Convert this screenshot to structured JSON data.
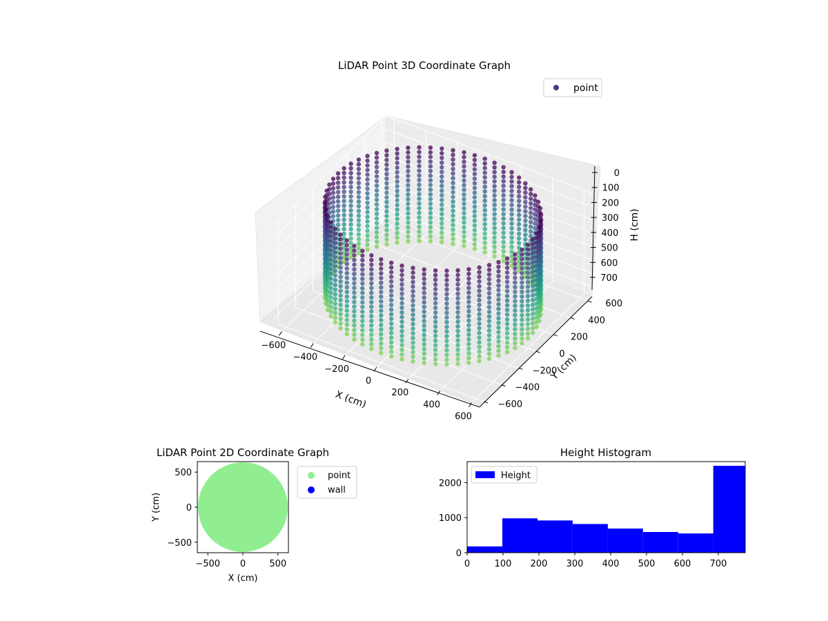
{
  "chart_data": [
    {
      "type": "scatter",
      "title": "LiDAR Point 3D Coordinate Graph",
      "xlabel": "X (cm)",
      "ylabel": "Y (cm)",
      "zlabel": "H (cm)",
      "xlim": [
        -650,
        650
      ],
      "ylim": [
        -650,
        650
      ],
      "zlim": [
        775,
        0
      ],
      "x_ticks": [
        -600,
        -400,
        -200,
        0,
        200,
        400,
        600
      ],
      "y_ticks": [
        -600,
        -400,
        -200,
        0,
        200,
        400,
        600
      ],
      "z_ticks": [
        0,
        100,
        200,
        300,
        400,
        500,
        600,
        700
      ],
      "grid": true,
      "legend": {
        "location": "upper right",
        "entries": [
          {
            "label": "point",
            "color": "#453781"
          }
        ]
      },
      "colormap": "viridis",
      "series": [
        {
          "name": "point",
          "description_rings": {
            "radius": 600,
            "angle_coverage_deg": [
              0,
              360
            ],
            "height_range": [
              0,
              700
            ]
          }
        }
      ]
    },
    {
      "type": "scatter",
      "title": "LiDAR Point 2D Coordinate Graph",
      "xlabel": "X (cm)",
      "ylabel": "Y (cm)",
      "xlim": [
        -650,
        650
      ],
      "ylim": [
        -650,
        650
      ],
      "x_ticks": [
        -500,
        0,
        500
      ],
      "y_ticks": [
        -500,
        0,
        500
      ],
      "legend": {
        "location": "outside right",
        "entries": [
          {
            "label": "point",
            "color": "#90ee90"
          },
          {
            "label": "wall",
            "color": "#0000ff"
          }
        ]
      },
      "series": [
        {
          "name": "point",
          "color": "#90ee90",
          "shape": "disk",
          "radius": 640
        },
        {
          "name": "wall",
          "color": "#0000ff",
          "values": []
        }
      ]
    },
    {
      "type": "bar",
      "title": "Height Histogram",
      "xlabel": "",
      "ylabel": "",
      "xlim": [
        0,
        775
      ],
      "ylim": [
        0,
        2600
      ],
      "x_ticks": [
        0,
        100,
        200,
        300,
        400,
        500,
        600,
        700
      ],
      "y_ticks": [
        0,
        1000,
        2000
      ],
      "legend": {
        "location": "upper left",
        "entries": [
          {
            "label": "Height",
            "color": "#0000ff"
          }
        ]
      },
      "bin_edges": [
        0,
        98,
        196,
        294,
        392,
        490,
        588,
        686,
        775
      ],
      "values": [
        180,
        980,
        920,
        820,
        690,
        590,
        550,
        2480
      ],
      "series": [
        {
          "name": "Height",
          "color": "#0000ff"
        }
      ]
    }
  ]
}
